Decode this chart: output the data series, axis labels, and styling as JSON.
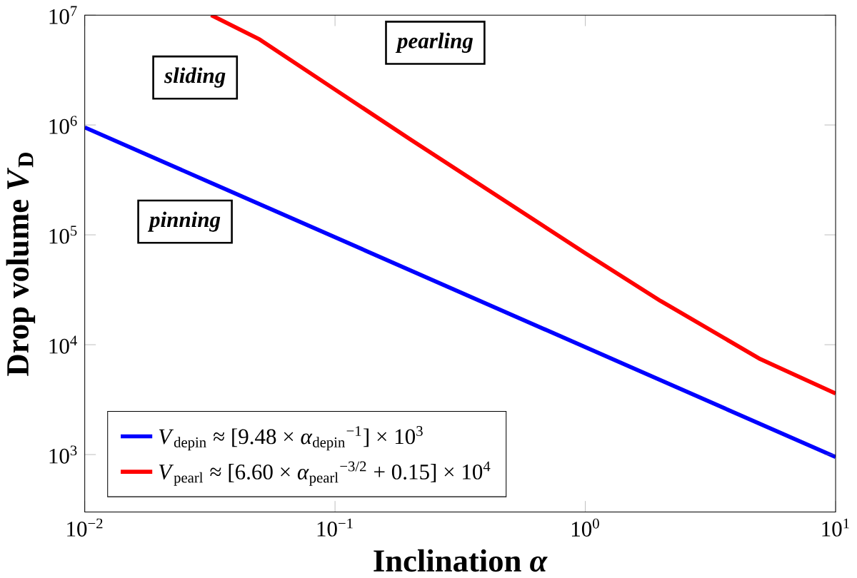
{
  "chart_data": {
    "type": "line",
    "xlabel": "Inclination *α*",
    "ylabel": "Drop volume *V*$_{D}$",
    "log": "xy",
    "xlim": [
      0.01,
      10
    ],
    "ylim": [
      300,
      10000000
    ],
    "xticks": [
      {
        "value": 0.01,
        "label": "10$^{−2}$"
      },
      {
        "value": 0.1,
        "label": "10$^{−1}$"
      },
      {
        "value": 1,
        "label": "10$^{0}$"
      },
      {
        "value": 10,
        "label": "10$^{1}$"
      }
    ],
    "yticks": [
      {
        "value": 1000,
        "label": "10$^{3}$"
      },
      {
        "value": 10000,
        "label": "10$^{4}$"
      },
      {
        "value": 100000,
        "label": "10$^{5}$"
      },
      {
        "value": 1000000,
        "label": "10$^{6}$"
      },
      {
        "value": 10000000,
        "label": "10$^{7}$"
      }
    ],
    "series": [
      {
        "name": "*V*$_{depin}$ ≈ [9.48 × *α*$_{depin}$$^{−1}$] × 10$^{3}$",
        "color": "#0000ff",
        "x": [
          0.01,
          10
        ],
        "values": [
          950000,
          950
        ]
      },
      {
        "name": "*V*$_{pearl}$ ≈ [6.60 × *α*$_{pearl}$$^{−3/2}$ + 0.15] × 10$^{4}$",
        "color": "#ff0000",
        "x": [
          0.032,
          0.05,
          0.1,
          0.2,
          0.5,
          1,
          2,
          5,
          10
        ],
        "values": [
          10000000,
          6000000,
          2100000,
          740000,
          190000,
          68000,
          25000,
          7400,
          3600
        ]
      }
    ],
    "annotations": [
      "pinning",
      "sliding",
      "pearling"
    ],
    "legend": "bottom left",
    "grid": false
  }
}
